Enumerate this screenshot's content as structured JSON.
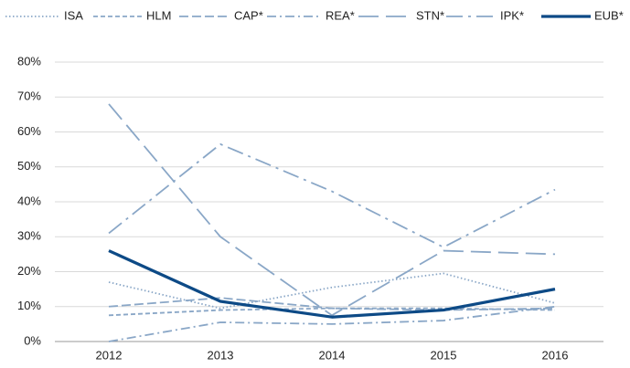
{
  "chart_data": {
    "type": "line",
    "categories": [
      "2012",
      "2013",
      "2014",
      "2015",
      "2016"
    ],
    "series": [
      {
        "name": "ISA",
        "color": "#8aa7c7",
        "values": [
          17,
          9.5,
          15.5,
          19.5,
          11
        ]
      },
      {
        "name": "HLM",
        "color": "#8aa7c7",
        "values": [
          7.5,
          9,
          9.5,
          9.5,
          9
        ]
      },
      {
        "name": "CAP*",
        "color": "#8aa7c7",
        "values": [
          10,
          12.5,
          9.5,
          9,
          9.5
        ]
      },
      {
        "name": "REA*",
        "color": "#8aa7c7",
        "values": [
          0,
          5.5,
          5,
          6,
          10
        ]
      },
      {
        "name": "STN*",
        "color": "#8aa7c7",
        "values": [
          68,
          30,
          7.5,
          26,
          25
        ]
      },
      {
        "name": "IPK*",
        "color": "#8aa7c7",
        "values": [
          31,
          56.5,
          43,
          27,
          43.5
        ]
      },
      {
        "name": "EUB*",
        "color": "#0d4a86",
        "values": [
          26,
          11.5,
          7,
          9,
          15
        ]
      }
    ],
    "ylim": [
      0,
      80
    ],
    "yticks": [
      {
        "value": 0,
        "label": "0%"
      },
      {
        "value": 10,
        "label": "10%"
      },
      {
        "value": 20,
        "label": "20%"
      },
      {
        "value": 30,
        "label": "30%"
      },
      {
        "value": 40,
        "label": "40%"
      },
      {
        "value": 50,
        "label": "50%"
      },
      {
        "value": 60,
        "label": "60%"
      },
      {
        "value": 70,
        "label": "70%"
      },
      {
        "value": 80,
        "label": "80%"
      }
    ],
    "grid": true,
    "legend": "top"
  }
}
